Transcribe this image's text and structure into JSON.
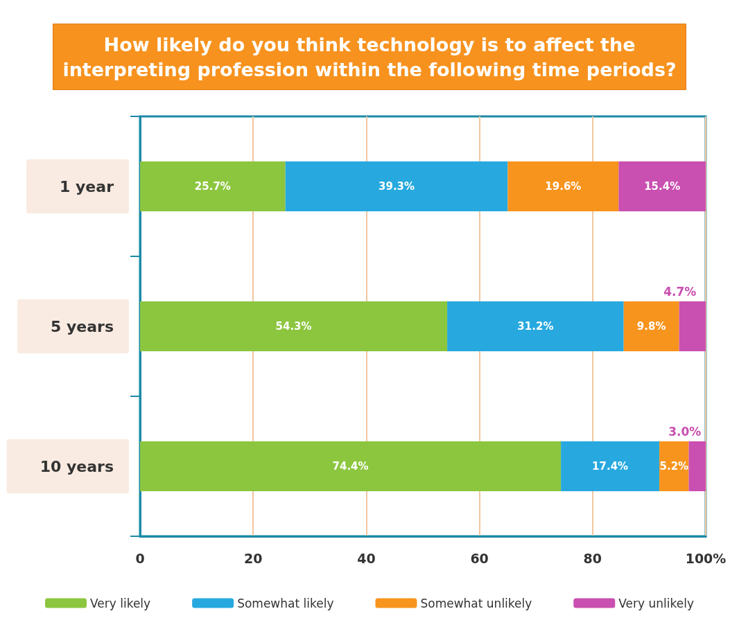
{
  "chart_data": {
    "type": "bar",
    "title": "How likely do you think technology is to affect the\ninterpreting profession within the following time periods?",
    "orientation": "horizontal",
    "stacked": true,
    "categories": [
      "1 year",
      "5 years",
      "10 years"
    ],
    "series": [
      {
        "name": "Very likely",
        "color": "#8cc63f",
        "values": [
          25.7,
          54.3,
          74.4
        ],
        "value_labels": [
          "25.7%",
          "54.3%",
          "74.4%"
        ]
      },
      {
        "name": "Somewhat likely",
        "color": "#27a9df",
        "values": [
          39.3,
          31.2,
          17.4
        ],
        "value_labels": [
          "39.3%",
          "31.2%",
          "17.4%"
        ]
      },
      {
        "name": "Somewhat unlikely",
        "color": "#f7941d",
        "values": [
          19.6,
          9.8,
          5.2
        ],
        "value_labels": [
          "19.6%",
          "9.8%",
          "5.2%"
        ]
      },
      {
        "name": "Very unlikely",
        "color": "#c94fb0",
        "values": [
          15.4,
          4.7,
          3.0
        ],
        "value_labels": [
          "15.4%",
          "4.7%",
          "3.0%"
        ]
      }
    ],
    "xlim": [
      0,
      100
    ],
    "xticks": [
      0,
      20,
      40,
      60,
      80,
      {
        "value": 100,
        "label": "100%"
      }
    ],
    "grid": "x",
    "legend": "bottom"
  }
}
